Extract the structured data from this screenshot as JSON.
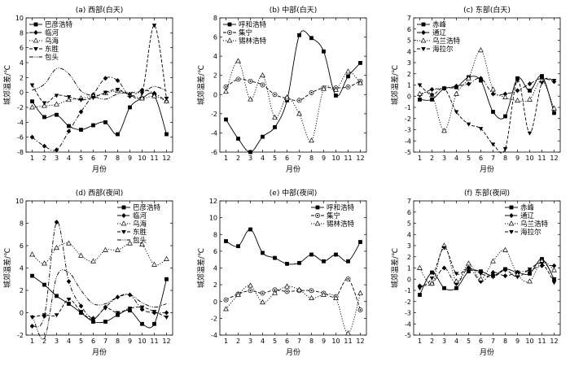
{
  "chart_data": [
    {
      "type": "line",
      "title": "(a) 西部(白天)",
      "xlabel": "月份",
      "ylabel": "城郊温差/℃",
      "x": [
        1,
        2,
        3,
        4,
        5,
        6,
        7,
        8,
        9,
        10,
        11,
        12
      ],
      "xlim": [
        0.5,
        12.5
      ],
      "ylim": [
        -8,
        10
      ],
      "yticks": [
        -8,
        -6,
        -4,
        -2,
        0,
        2,
        4,
        6,
        8,
        10
      ],
      "legend_position": "top-left",
      "series": [
        {
          "name": "巴彦浩特",
          "values": [
            -1.2,
            -3.3,
            -3.0,
            -4.5,
            -5.0,
            -4.4,
            -4.0,
            -5.6,
            -2.0,
            -0.8,
            -0.4,
            -5.6
          ]
        },
        {
          "name": "临河",
          "values": [
            -6.0,
            -7.2,
            -7.7,
            -5.2,
            -2.6,
            -0.3,
            1.9,
            1.6,
            -0.5,
            0.3,
            -0.1,
            -1.2
          ]
        },
        {
          "name": "乌海",
          "values": [
            -2.0,
            -1.8,
            -1.6,
            -1.0,
            -0.8,
            -0.5,
            -0.1,
            0.2,
            -0.3,
            -0.8,
            -0.5,
            -1.2
          ]
        },
        {
          "name": "东胜",
          "values": [
            1.0,
            -1.4,
            -0.4,
            -0.6,
            -1.0,
            -0.7,
            0.0,
            0.4,
            -0.3,
            -0.1,
            9.0,
            -0.8
          ]
        },
        {
          "name": "包头",
          "values": [
            0.3,
            1.1,
            3.2,
            2.5,
            0.2,
            -0.5,
            -0.9,
            -0.2,
            0.0,
            0.0,
            0.8,
            0.2
          ]
        }
      ]
    },
    {
      "type": "line",
      "title": "(b) 中部(白天)",
      "xlabel": "月份",
      "ylabel": "城郊温差/℃",
      "x": [
        1,
        2,
        3,
        4,
        5,
        6,
        7,
        8,
        9,
        10,
        11,
        12
      ],
      "xlim": [
        0.5,
        12.5
      ],
      "ylim": [
        -6,
        8
      ],
      "yticks": [
        -6,
        -4,
        -2,
        0,
        2,
        4,
        6,
        8
      ],
      "legend_position": "top-left",
      "series": [
        {
          "name": "呼和浩特",
          "values": [
            -2.6,
            -4.6,
            -6.0,
            -4.4,
            -3.4,
            -0.6,
            6.2,
            5.9,
            4.5,
            -0.1,
            1.9,
            3.3
          ]
        },
        {
          "name": "集宁",
          "values": [
            0.8,
            1.6,
            1.4,
            1.0,
            0.0,
            -0.4,
            -0.6,
            0.2,
            0.7,
            0.7,
            0.8,
            1.4
          ]
        },
        {
          "name": "锡林浩特",
          "values": [
            0.3,
            3.5,
            -0.5,
            2.0,
            -2.4,
            -0.3,
            -2.0,
            -4.8,
            0.6,
            0.5,
            2.4,
            1.2
          ]
        }
      ]
    },
    {
      "type": "line",
      "title": "(c) 东部(白天)",
      "xlabel": "月份",
      "ylabel": "城郊温差/℃",
      "x": [
        1,
        2,
        3,
        4,
        5,
        6,
        7,
        8,
        9,
        10,
        11,
        12
      ],
      "xlim": [
        0.5,
        12.5
      ],
      "ylim": [
        -5,
        7
      ],
      "yticks": [
        -5,
        -4,
        -3,
        -2,
        -1,
        0,
        1,
        2,
        3,
        4,
        5,
        6,
        7
      ],
      "legend_position": "top-left",
      "series": [
        {
          "name": "赤峰",
          "values": [
            -0.3,
            -0.3,
            0.7,
            0.8,
            1.7,
            1.4,
            -1.4,
            -1.8,
            1.6,
            0.5,
            1.8,
            -1.5
          ]
        },
        {
          "name": "通辽",
          "values": [
            0.1,
            0.6,
            0.7,
            0.9,
            1.1,
            1.6,
            0.2,
            0.2,
            0.5,
            1.1,
            1.6,
            1.3
          ]
        },
        {
          "name": "乌兰浩特",
          "values": [
            0.2,
            0.1,
            -3.1,
            0.2,
            1.6,
            4.1,
            0.6,
            -0.1,
            -0.4,
            -0.3,
            1.4,
            -1.1
          ]
        },
        {
          "name": "海拉尔",
          "values": [
            1.0,
            0.1,
            0.7,
            -1.4,
            -2.5,
            -2.9,
            -4.3,
            -4.7,
            1.4,
            -3.3,
            1.2,
            1.4
          ]
        }
      ]
    },
    {
      "type": "line",
      "title": "(d) 西部(夜间)",
      "xlabel": "月份",
      "ylabel": "城郊温差/℃",
      "x": [
        1,
        2,
        3,
        4,
        5,
        6,
        7,
        8,
        9,
        10,
        11,
        12
      ],
      "xlim": [
        0.5,
        12.5
      ],
      "ylim": [
        -2,
        10
      ],
      "yticks": [
        -2,
        0,
        2,
        4,
        6,
        8,
        10
      ],
      "legend_position": "top-right",
      "series": [
        {
          "name": "巴彦浩特",
          "values": [
            3.3,
            2.5,
            1.5,
            0.8,
            0.0,
            -0.8,
            -0.8,
            -0.2,
            0.2,
            -1.0,
            -1.0,
            3.0
          ]
        },
        {
          "name": "临河",
          "values": [
            -1.2,
            -0.3,
            8.1,
            2.8,
            0.6,
            -0.5,
            0.5,
            1.4,
            1.6,
            0.3,
            0.0,
            0.0
          ]
        },
        {
          "name": "乌海",
          "values": [
            5.2,
            4.4,
            5.8,
            6.2,
            5.1,
            4.6,
            5.6,
            5.6,
            6.2,
            6.1,
            4.3,
            4.8
          ]
        },
        {
          "name": "东胜",
          "values": [
            -0.4,
            -0.2,
            -0.2,
            1.2,
            0.1,
            -0.6,
            0.4,
            0.0,
            0.4,
            0.5,
            0.1,
            -0.4
          ]
        },
        {
          "name": "包头",
          "values": [
            -0.2,
            -2.3,
            3.2,
            3.6,
            2.0,
            0.8,
            0.8,
            1.4,
            1.6,
            0.9,
            0.5,
            0.8
          ]
        }
      ]
    },
    {
      "type": "line",
      "title": "(e) 中部(夜间)",
      "xlabel": "月份",
      "ylabel": "城郊温差/℃",
      "x": [
        1,
        2,
        3,
        4,
        5,
        6,
        7,
        8,
        9,
        10,
        11,
        12
      ],
      "xlim": [
        0.5,
        12.5
      ],
      "ylim": [
        -4,
        12
      ],
      "yticks": [
        -4,
        -2,
        0,
        2,
        4,
        6,
        8,
        10,
        12
      ],
      "legend_position": "top-right",
      "series": [
        {
          "name": "呼和浩特",
          "values": [
            7.2,
            6.6,
            8.6,
            5.8,
            5.2,
            4.5,
            4.6,
            5.6,
            4.8,
            5.6,
            4.8,
            7.1
          ]
        },
        {
          "name": "集宁",
          "values": [
            0.2,
            0.9,
            1.3,
            1.0,
            1.4,
            1.2,
            1.3,
            1.3,
            1.0,
            0.6,
            2.7,
            -1.0
          ]
        },
        {
          "name": "锡林浩特",
          "values": [
            -0.9,
            0.8,
            1.9,
            -0.1,
            1.0,
            1.8,
            1.4,
            0.4,
            0.8,
            0.4,
            -3.8,
            1.0
          ]
        }
      ]
    },
    {
      "type": "line",
      "title": "(f) 东部(夜间)",
      "xlabel": "月份",
      "ylabel": "城郊温差/℃",
      "x": [
        1,
        2,
        3,
        4,
        5,
        6,
        7,
        8,
        9,
        10,
        11,
        12
      ],
      "xlim": [
        0.5,
        12.5
      ],
      "ylim": [
        -5,
        7
      ],
      "yticks": [
        -5,
        -4,
        -3,
        -2,
        -1,
        0,
        1,
        2,
        3,
        4,
        5,
        6,
        7
      ],
      "legend_position": "top-right",
      "series": [
        {
          "name": "赤峰",
          "values": [
            -1.4,
            0.6,
            -0.8,
            -0.8,
            0.7,
            0.7,
            0.3,
            0.9,
            0.6,
            0.5,
            1.8,
            0.0
          ]
        },
        {
          "name": "通辽",
          "values": [
            -0.6,
            -0.4,
            1.0,
            -0.4,
            1.0,
            -0.2,
            0.6,
            0.3,
            0.6,
            0.8,
            1.2,
            1.2
          ]
        },
        {
          "name": "乌兰浩特",
          "values": [
            1.0,
            -0.4,
            3.0,
            -0.2,
            1.4,
            0.0,
            1.6,
            2.6,
            0.4,
            -0.2,
            1.6,
            0.8
          ]
        },
        {
          "name": "海拉尔",
          "values": [
            -0.8,
            0.1,
            2.8,
            0.5,
            1.0,
            0.5,
            0.2,
            0.8,
            0.2,
            0.9,
            1.4,
            -0.3
          ]
        }
      ]
    }
  ]
}
